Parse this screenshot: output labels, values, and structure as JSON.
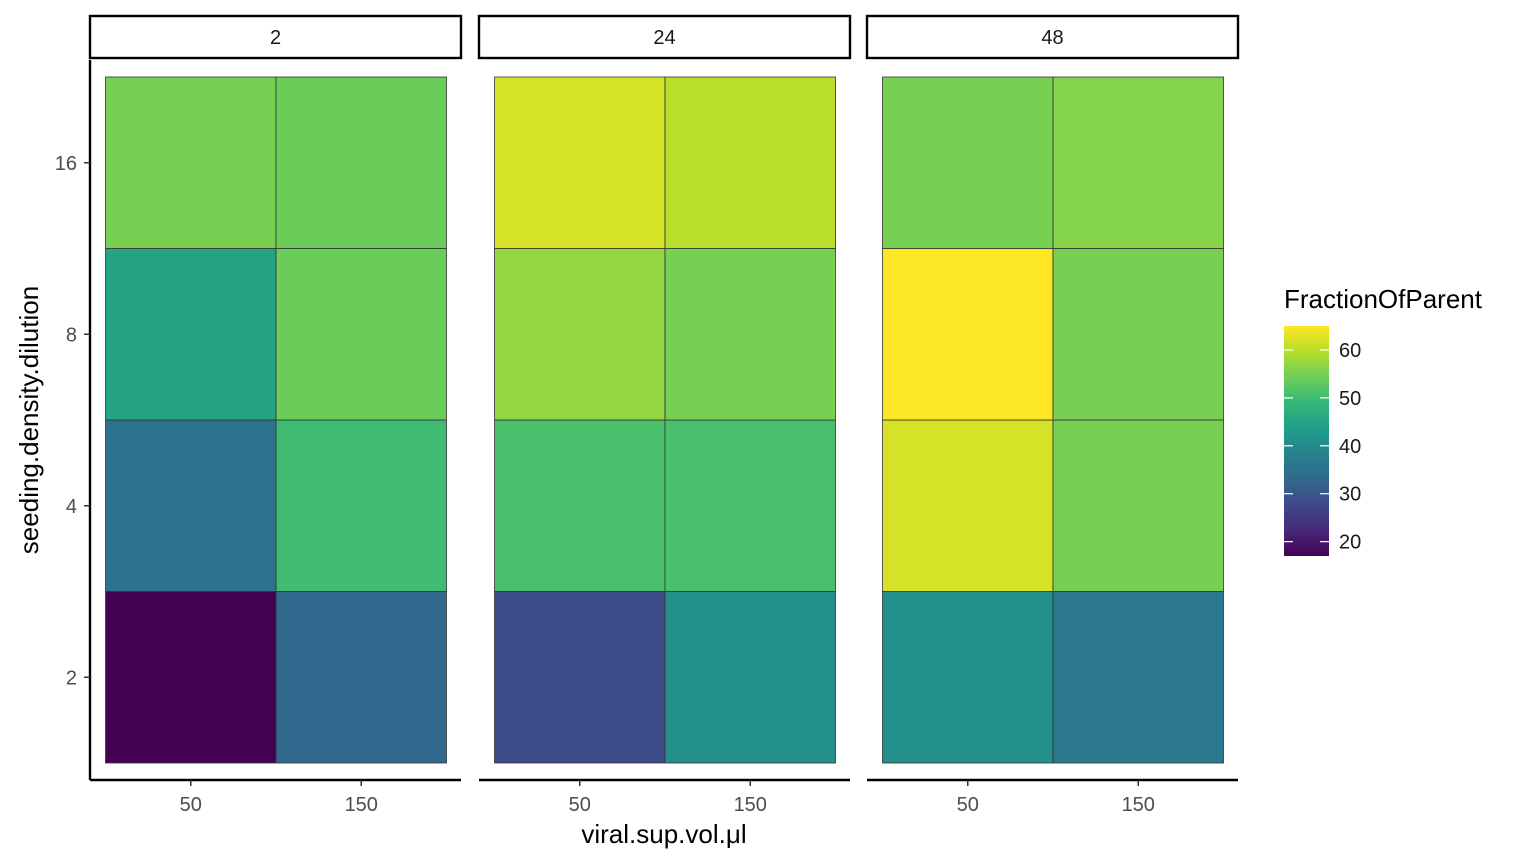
{
  "chart_data": {
    "type": "heatmap",
    "facet_variable_values": [
      "2",
      "24",
      "48"
    ],
    "x_categories": [
      "50",
      "150"
    ],
    "y_categories": [
      "2",
      "4",
      "8",
      "16"
    ],
    "xlabel": "viral.sup.vol.μl",
    "ylabel": "seeding.density.dilution",
    "legend_title": "FractionOfParent",
    "legend_placement": "right",
    "color_scale": {
      "name": "viridis",
      "min": 17,
      "max": 65,
      "ticks": [
        20,
        30,
        40,
        50,
        60
      ],
      "stops": [
        "#440154",
        "#482878",
        "#3e4989",
        "#31688e",
        "#26828e",
        "#1f9e89",
        "#35b779",
        "#6ece58",
        "#b5de2b",
        "#fde725"
      ]
    },
    "panels": [
      {
        "facet": "2",
        "cells": [
          {
            "x": "50",
            "y": "2",
            "value": 17
          },
          {
            "x": "150",
            "y": "2",
            "value": 33
          },
          {
            "x": "50",
            "y": "4",
            "value": 35
          },
          {
            "x": "150",
            "y": "4",
            "value": 50
          },
          {
            "x": "50",
            "y": "8",
            "value": 45
          },
          {
            "x": "150",
            "y": "8",
            "value": 54
          },
          {
            "x": "50",
            "y": "16",
            "value": 55
          },
          {
            "x": "150",
            "y": "16",
            "value": 54
          }
        ]
      },
      {
        "facet": "24",
        "cells": [
          {
            "x": "50",
            "y": "2",
            "value": 28
          },
          {
            "x": "150",
            "y": "2",
            "value": 41
          },
          {
            "x": "50",
            "y": "4",
            "value": 51
          },
          {
            "x": "150",
            "y": "4",
            "value": 51
          },
          {
            "x": "50",
            "y": "8",
            "value": 57
          },
          {
            "x": "150",
            "y": "8",
            "value": 55
          },
          {
            "x": "50",
            "y": "16",
            "value": 62
          },
          {
            "x": "150",
            "y": "16",
            "value": 60
          }
        ]
      },
      {
        "facet": "48",
        "cells": [
          {
            "x": "50",
            "y": "2",
            "value": 41
          },
          {
            "x": "150",
            "y": "2",
            "value": 36
          },
          {
            "x": "50",
            "y": "4",
            "value": 62
          },
          {
            "x": "150",
            "y": "4",
            "value": 55
          },
          {
            "x": "50",
            "y": "8",
            "value": 65
          },
          {
            "x": "150",
            "y": "8",
            "value": 55
          },
          {
            "x": "50",
            "y": "16",
            "value": 55
          },
          {
            "x": "150",
            "y": "16",
            "value": 56
          }
        ]
      }
    ]
  }
}
